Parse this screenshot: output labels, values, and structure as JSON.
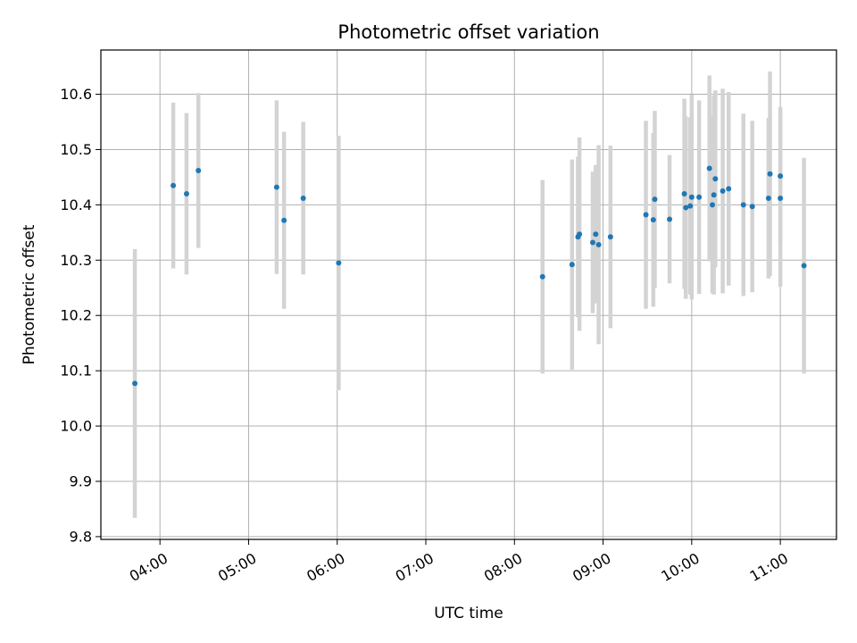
{
  "chart_data": {
    "type": "scatter",
    "title": "Photometric offset variation",
    "xlabel": "UTC time",
    "ylabel": "Photometric offset",
    "xlim": [
      "03:20",
      "11:38"
    ],
    "ylim": [
      9.795,
      10.68
    ],
    "x_ticks": [
      "04:00",
      "05:00",
      "06:00",
      "07:00",
      "08:00",
      "09:00",
      "10:00",
      "11:00"
    ],
    "y_ticks": [
      9.8,
      9.9,
      10.0,
      10.1,
      10.2,
      10.3,
      10.4,
      10.5,
      10.6
    ],
    "grid": true,
    "point_color": "#1f77b4",
    "errorbar_color": "#d3d3d3",
    "points": [
      {
        "x": "03:43",
        "y": 10.077,
        "err": 0.243
      },
      {
        "x": "04:09",
        "y": 10.435,
        "err": 0.15
      },
      {
        "x": "04:18",
        "y": 10.42,
        "err": 0.146
      },
      {
        "x": "04:26",
        "y": 10.462,
        "err": 0.14
      },
      {
        "x": "05:19",
        "y": 10.432,
        "err": 0.157
      },
      {
        "x": "05:24",
        "y": 10.372,
        "err": 0.16
      },
      {
        "x": "05:37",
        "y": 10.412,
        "err": 0.138
      },
      {
        "x": "06:01",
        "y": 10.295,
        "err": 0.23
      },
      {
        "x": "08:19",
        "y": 10.27,
        "err": 0.175
      },
      {
        "x": "08:39",
        "y": 10.292,
        "err": 0.19
      },
      {
        "x": "08:43",
        "y": 10.342,
        "err": 0.145
      },
      {
        "x": "08:44",
        "y": 10.347,
        "err": 0.175
      },
      {
        "x": "08:53",
        "y": 10.332,
        "err": 0.128
      },
      {
        "x": "08:55",
        "y": 10.347,
        "err": 0.125
      },
      {
        "x": "08:57",
        "y": 10.328,
        "err": 0.18
      },
      {
        "x": "09:05",
        "y": 10.342,
        "err": 0.165
      },
      {
        "x": "09:29",
        "y": 10.382,
        "err": 0.17
      },
      {
        "x": "09:34",
        "y": 10.373,
        "err": 0.157
      },
      {
        "x": "09:35",
        "y": 10.41,
        "err": 0.16
      },
      {
        "x": "09:45",
        "y": 10.374,
        "err": 0.116
      },
      {
        "x": "09:55",
        "y": 10.42,
        "err": 0.172
      },
      {
        "x": "09:56",
        "y": 10.395,
        "err": 0.165
      },
      {
        "x": "09:59",
        "y": 10.398,
        "err": 0.16
      },
      {
        "x": "10:00",
        "y": 10.414,
        "err": 0.185
      },
      {
        "x": "10:05",
        "y": 10.414,
        "err": 0.175
      },
      {
        "x": "10:12",
        "y": 10.466,
        "err": 0.168
      },
      {
        "x": "10:14",
        "y": 10.4,
        "err": 0.16
      },
      {
        "x": "10:15",
        "y": 10.418,
        "err": 0.18
      },
      {
        "x": "10:16",
        "y": 10.447,
        "err": 0.16
      },
      {
        "x": "10:21",
        "y": 10.425,
        "err": 0.185
      },
      {
        "x": "10:25",
        "y": 10.429,
        "err": 0.175
      },
      {
        "x": "10:35",
        "y": 10.4,
        "err": 0.165
      },
      {
        "x": "10:41",
        "y": 10.397,
        "err": 0.155
      },
      {
        "x": "10:52",
        "y": 10.412,
        "err": 0.145
      },
      {
        "x": "10:53",
        "y": 10.456,
        "err": 0.185
      },
      {
        "x": "11:00",
        "y": 10.452,
        "err": 0.125
      },
      {
        "x": "11:00",
        "y": 10.412,
        "err": 0.16
      },
      {
        "x": "11:16",
        "y": 10.29,
        "err": 0.195
      }
    ]
  }
}
